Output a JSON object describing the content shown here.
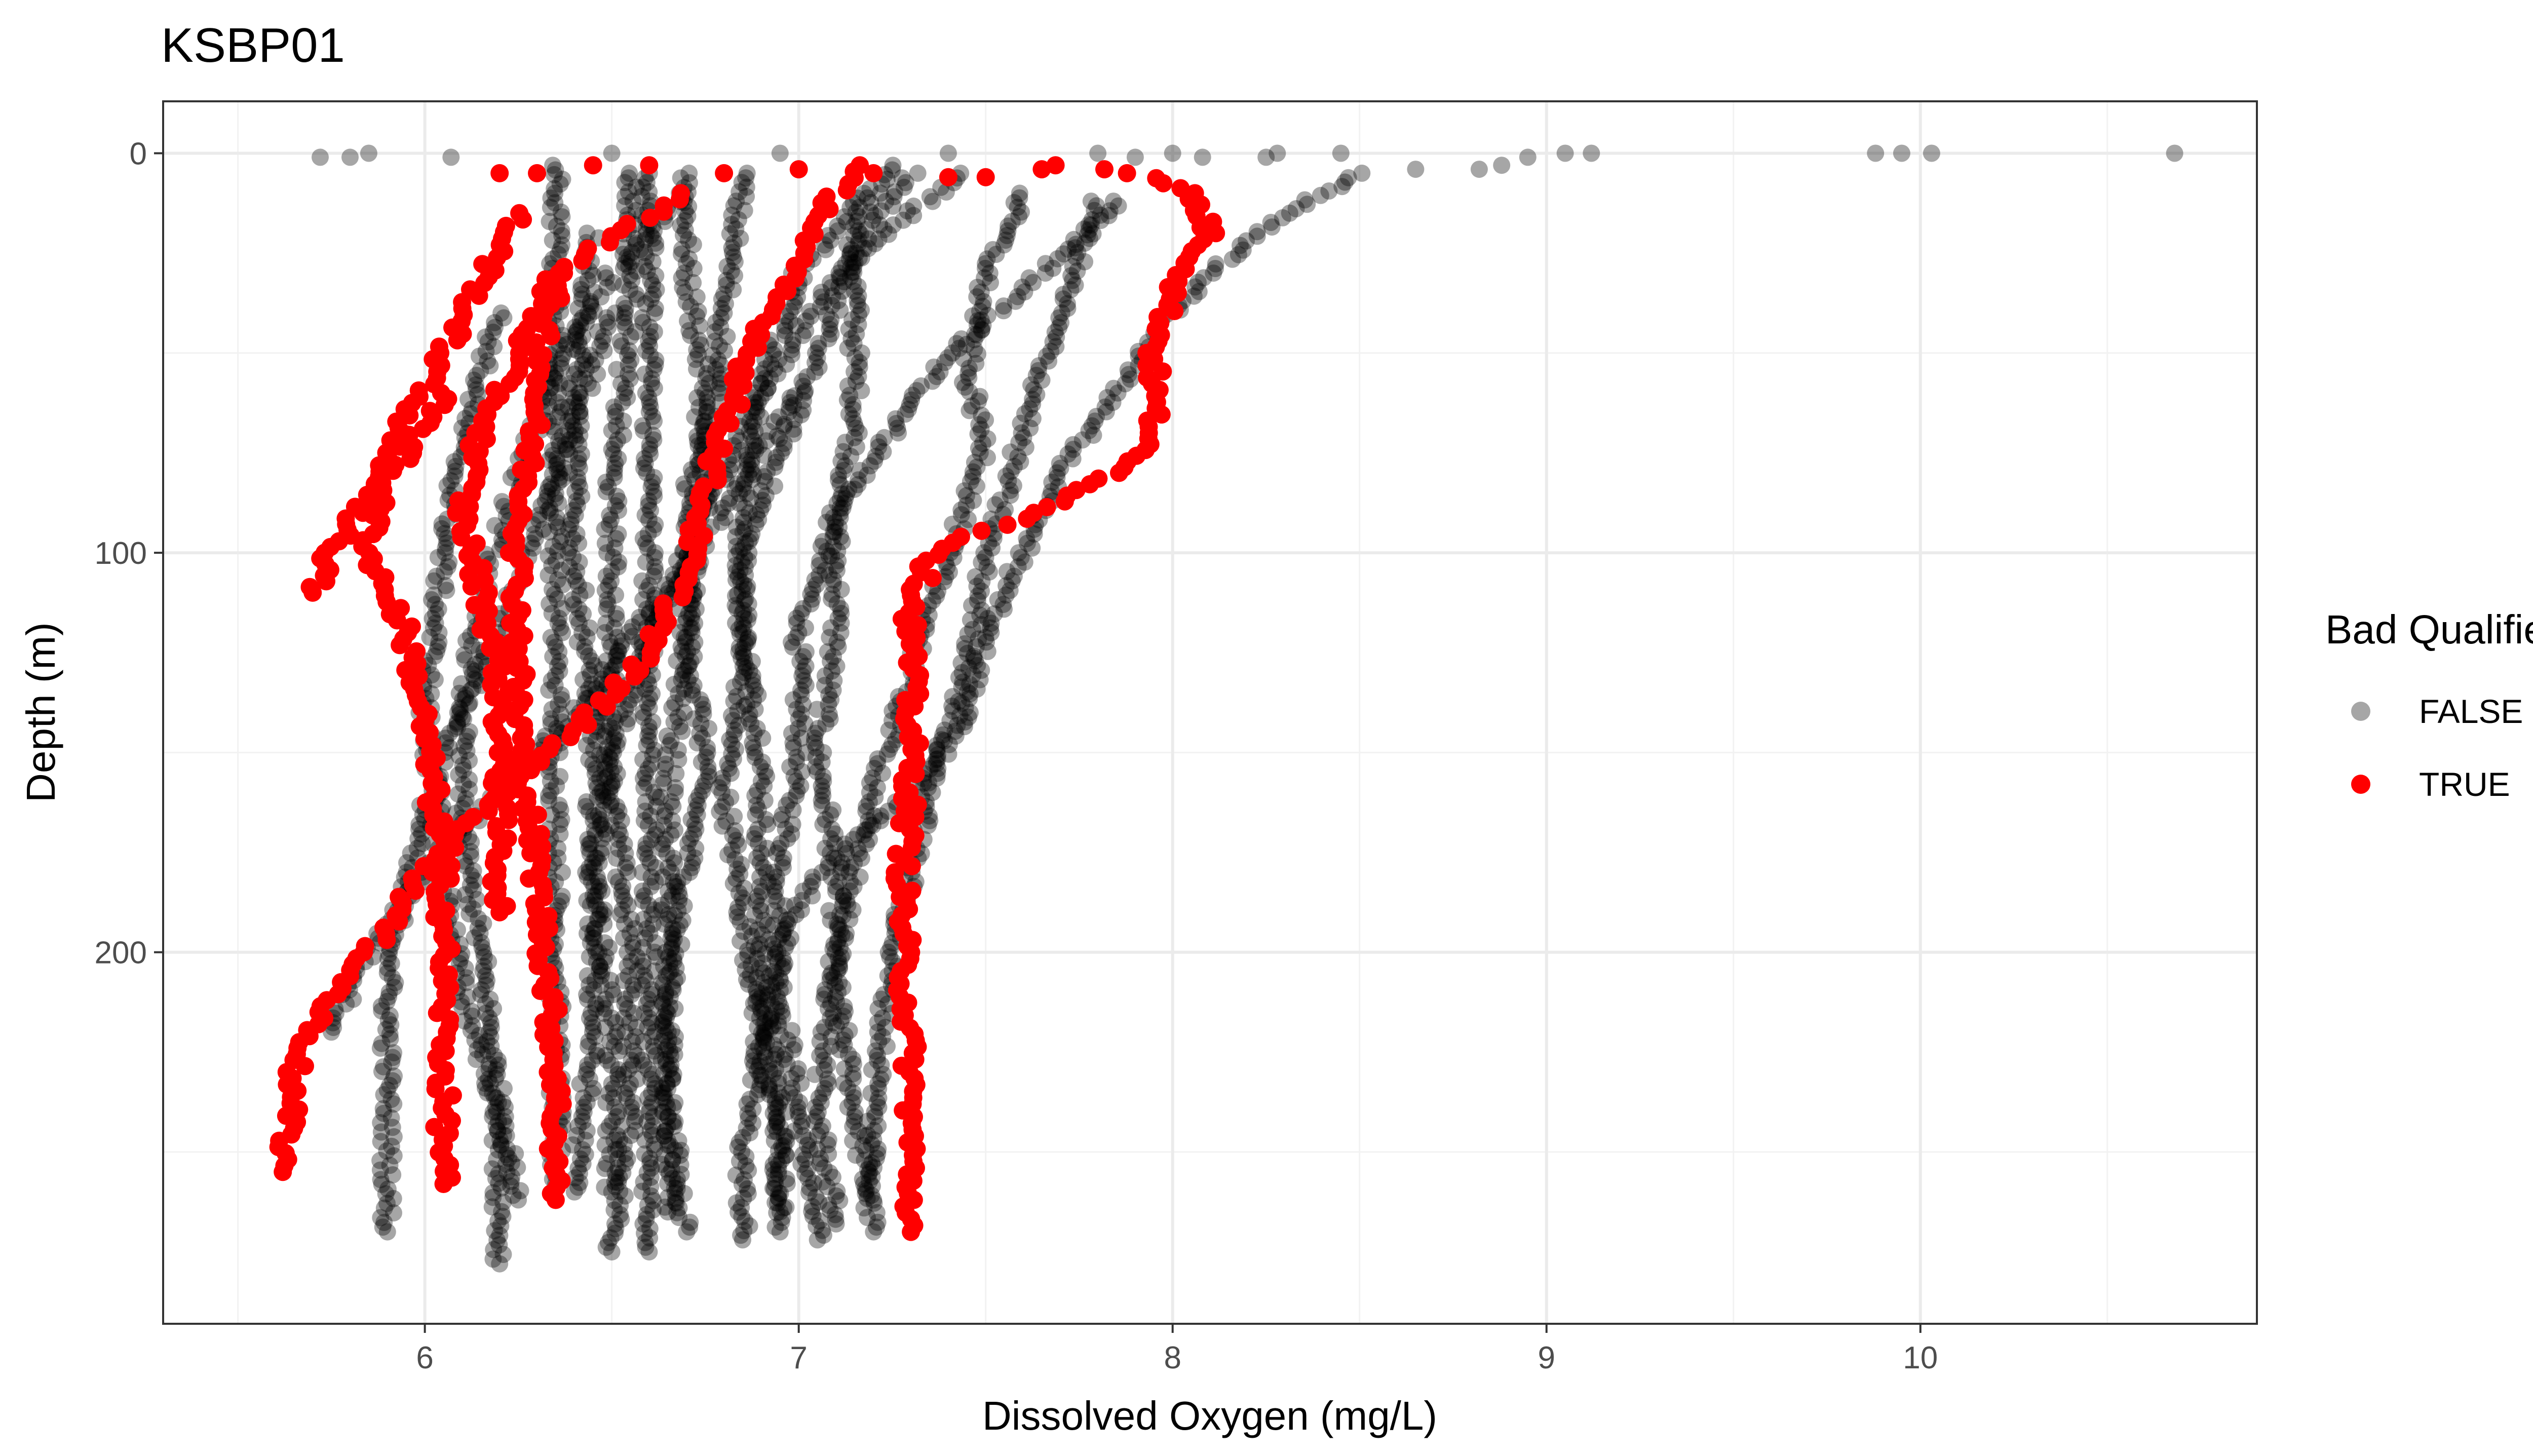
{
  "chart_data": {
    "type": "scatter",
    "title": "KSBP01",
    "xlabel": "Dissolved Oxygen (mg/L)",
    "ylabel": "Depth (m)",
    "xlim": [
      5.3,
      10.9
    ],
    "ylim": [
      -13,
      293
    ],
    "y_reversed": true,
    "x_ticks": [
      6,
      7,
      8,
      9,
      10
    ],
    "y_ticks": [
      0,
      100,
      200
    ],
    "grid": true,
    "legend": {
      "title": "Bad Qualifier",
      "position": "right",
      "entries": [
        {
          "label": "FALSE",
          "color": "#000000",
          "opacity": 0.35
        },
        {
          "label": "TRUE",
          "color": "#ff0000",
          "opacity": 1.0
        }
      ]
    },
    "series": [
      {
        "name": "FALSE",
        "color": "#000000",
        "opacity": 0.35,
        "profiles": [
          [
            [
              8.5,
              5
            ],
            [
              8.3,
              15
            ],
            [
              8.1,
              30
            ],
            [
              7.95,
              45
            ],
            [
              7.85,
              60
            ],
            [
              7.7,
              80
            ],
            [
              7.6,
              100
            ],
            [
              7.5,
              120
            ],
            [
              7.45,
              140
            ],
            [
              7.3,
              160
            ],
            [
              7.05,
              180
            ],
            [
              6.95,
              200
            ],
            [
              6.9,
              225
            ],
            [
              6.95,
              245
            ],
            [
              6.95,
              265
            ]
          ],
          [
            [
              7.85,
              12
            ],
            [
              7.65,
              30
            ],
            [
              7.4,
              50
            ],
            [
              7.25,
              70
            ],
            [
              7.1,
              90
            ],
            [
              7.0,
              120
            ],
            [
              7.0,
              150
            ],
            [
              6.95,
              180
            ],
            [
              6.95,
              210
            ],
            [
              7.0,
              240
            ],
            [
              7.05,
              272
            ]
          ],
          [
            [
              7.3,
              5
            ],
            [
              7.15,
              25
            ],
            [
              7.15,
              50
            ],
            [
              7.15,
              70
            ],
            [
              7.1,
              90
            ],
            [
              7.1,
              120
            ],
            [
              7.05,
              150
            ],
            [
              7.1,
              180
            ],
            [
              7.1,
              210
            ],
            [
              7.15,
              240
            ],
            [
              7.2,
              270
            ]
          ],
          [
            [
              7.25,
              3
            ],
            [
              7.0,
              30
            ],
            [
              6.9,
              60
            ],
            [
              6.85,
              90
            ],
            [
              6.85,
              120
            ],
            [
              6.9,
              150
            ],
            [
              6.9,
              180
            ],
            [
              6.9,
              210
            ],
            [
              6.95,
              240
            ],
            [
              6.95,
              270
            ]
          ],
          [
            [
              7.45,
              5
            ],
            [
              7.15,
              25
            ],
            [
              7.05,
              50
            ],
            [
              6.95,
              75
            ],
            [
              6.85,
              100
            ],
            [
              6.85,
              130
            ],
            [
              6.8,
              160
            ],
            [
              6.85,
              190
            ],
            [
              6.9,
              220
            ],
            [
              6.85,
              250
            ],
            [
              6.85,
              272
            ]
          ],
          [
            [
              6.35,
              3
            ],
            [
              6.35,
              30
            ],
            [
              6.35,
              60
            ],
            [
              6.35,
              90
            ],
            [
              6.35,
              120
            ],
            [
              6.35,
              150
            ],
            [
              6.35,
              180
            ],
            [
              6.35,
              210
            ],
            [
              6.35,
              240
            ],
            [
              6.35,
              258
            ]
          ],
          [
            [
              6.7,
              5
            ],
            [
              6.7,
              30
            ],
            [
              6.75,
              60
            ],
            [
              6.7,
              90
            ],
            [
              6.7,
              120
            ],
            [
              6.75,
              150
            ],
            [
              6.7,
              180
            ],
            [
              6.65,
              210
            ],
            [
              6.65,
              240
            ],
            [
              6.7,
              270
            ]
          ],
          [
            [
              6.55,
              5
            ],
            [
              6.55,
              40
            ],
            [
              6.5,
              80
            ],
            [
              6.5,
              120
            ],
            [
              6.5,
              160
            ],
            [
              6.55,
              200
            ],
            [
              6.55,
              240
            ],
            [
              6.5,
              275
            ]
          ],
          [
            [
              6.6,
              5
            ],
            [
              6.6,
              40
            ],
            [
              6.6,
              80
            ],
            [
              6.6,
              120
            ],
            [
              6.6,
              160
            ],
            [
              6.6,
              200
            ],
            [
              6.6,
              240
            ],
            [
              6.6,
              275
            ]
          ],
          [
            [
              6.45,
              20
            ],
            [
              6.4,
              60
            ],
            [
              6.4,
              100
            ],
            [
              6.45,
              140
            ],
            [
              6.45,
              180
            ],
            [
              6.5,
              220
            ],
            [
              6.5,
              260
            ]
          ],
          [
            [
              6.85,
              5
            ],
            [
              6.8,
              40
            ],
            [
              6.75,
              80
            ],
            [
              6.7,
              120
            ],
            [
              6.65,
              160
            ],
            [
              6.65,
              200
            ],
            [
              6.65,
              240
            ],
            [
              6.65,
              265
            ]
          ],
          [
            [
              7.2,
              10
            ],
            [
              7.1,
              30
            ],
            [
              6.9,
              60
            ],
            [
              6.75,
              90
            ],
            [
              6.6,
              120
            ],
            [
              6.5,
              150
            ],
            [
              6.45,
              180
            ],
            [
              6.45,
              220
            ],
            [
              6.4,
              260
            ]
          ],
          [
            [
              6.7,
              10
            ],
            [
              6.5,
              30
            ],
            [
              6.35,
              55
            ],
            [
              6.25,
              80
            ],
            [
              6.15,
              110
            ],
            [
              6.1,
              140
            ],
            [
              6.1,
              170
            ],
            [
              6.15,
              200
            ],
            [
              6.2,
              240
            ],
            [
              6.2,
              278
            ]
          ],
          [
            [
              6.5,
              40
            ],
            [
              6.35,
              80
            ],
            [
              6.2,
              120
            ],
            [
              6.05,
              150
            ],
            [
              5.95,
              180
            ],
            [
              5.9,
              210
            ],
            [
              5.9,
              245
            ],
            [
              5.9,
              270
            ]
          ],
          [
            [
              7.0,
              60
            ],
            [
              6.8,
              90
            ],
            [
              6.6,
              115
            ],
            [
              6.4,
              140
            ],
            [
              6.2,
              160
            ],
            [
              6.0,
              180
            ],
            [
              5.85,
              200
            ],
            [
              5.75,
              220
            ]
          ],
          [
            [
              6.2,
              40
            ],
            [
              6.1,
              70
            ],
            [
              6.05,
              100
            ],
            [
              6.0,
              140
            ],
            [
              6.05,
              180
            ],
            [
              6.1,
              210
            ],
            [
              6.2,
              240
            ],
            [
              6.25,
              262
            ]
          ],
          [
            [
              7.6,
              10
            ],
            [
              7.5,
              30
            ],
            [
              7.45,
              55
            ],
            [
              7.5,
              75
            ],
            [
              7.4,
              100
            ],
            [
              7.3,
              130
            ],
            [
              7.2,
              160
            ],
            [
              7.1,
              200
            ],
            [
              7.05,
              240
            ],
            [
              7.1,
              268
            ]
          ],
          [
            [
              7.8,
              12
            ],
            [
              7.7,
              40
            ],
            [
              7.6,
              70
            ],
            [
              7.5,
              100
            ],
            [
              7.45,
              130
            ],
            [
              7.35,
              160
            ],
            [
              7.25,
              200
            ],
            [
              7.2,
              240
            ],
            [
              7.2,
              262
            ]
          ]
        ],
        "surface_points": [
          [
            5.72,
            1
          ],
          [
            5.8,
            1
          ],
          [
            5.85,
            0
          ],
          [
            6.07,
            1
          ],
          [
            6.5,
            0
          ],
          [
            6.95,
            0
          ],
          [
            7.4,
            0
          ],
          [
            7.8,
            0
          ],
          [
            7.9,
            1
          ],
          [
            8.0,
            0
          ],
          [
            8.08,
            1
          ],
          [
            8.25,
            1
          ],
          [
            8.28,
            0
          ],
          [
            8.45,
            0
          ],
          [
            8.65,
            4
          ],
          [
            8.82,
            4
          ],
          [
            8.88,
            3
          ],
          [
            8.95,
            1
          ],
          [
            9.05,
            0
          ],
          [
            9.12,
            0
          ],
          [
            9.88,
            0
          ],
          [
            9.95,
            0
          ],
          [
            10.03,
            0
          ],
          [
            10.68,
            0
          ]
        ]
      },
      {
        "name": "TRUE",
        "color": "#ff0000",
        "opacity": 1.0,
        "profiles": [
          [
            [
              7.7,
              3
            ],
            [
              7.9,
              5
            ],
            [
              8.05,
              10
            ],
            [
              8.1,
              20
            ],
            [
              8.0,
              35
            ],
            [
              7.95,
              50
            ],
            [
              7.95,
              70
            ],
            [
              7.85,
              80
            ],
            [
              7.65,
              90
            ],
            [
              7.45,
              96
            ],
            [
              7.35,
              102
            ],
            [
              7.3,
              115
            ],
            [
              7.3,
              140
            ],
            [
              7.3,
              160
            ],
            [
              7.28,
              180
            ],
            [
              7.28,
              200
            ],
            [
              7.3,
              230
            ],
            [
              7.3,
              270
            ]
          ],
          [
            [
              7.15,
              3
            ],
            [
              7.0,
              25
            ],
            [
              6.85,
              55
            ],
            [
              6.75,
              85
            ],
            [
              6.7,
              105
            ],
            [
              6.6,
              125
            ],
            [
              6.45,
              140
            ],
            [
              6.2,
              160
            ],
            [
              6.0,
              180
            ],
            [
              5.85,
              200
            ],
            [
              5.72,
              215
            ],
            [
              5.65,
              230
            ],
            [
              5.62,
              255
            ]
          ],
          [
            [
              6.7,
              10
            ],
            [
              6.35,
              30
            ],
            [
              6.25,
              50
            ],
            [
              6.15,
              70
            ],
            [
              6.1,
              90
            ],
            [
              6.15,
              110
            ],
            [
              6.2,
              130
            ],
            [
              6.2,
              150
            ],
            [
              6.2,
              170
            ],
            [
              6.2,
              190
            ]
          ],
          [
            [
              6.35,
              30
            ],
            [
              6.3,
              60
            ],
            [
              6.25,
              100
            ],
            [
              6.25,
              140
            ],
            [
              6.3,
              180
            ],
            [
              6.35,
              230
            ],
            [
              6.35,
              262
            ]
          ],
          [
            [
              6.25,
              15
            ],
            [
              6.05,
              50
            ],
            [
              5.9,
              75
            ],
            [
              5.85,
              100
            ],
            [
              5.95,
              120
            ],
            [
              6.0,
              145
            ],
            [
              6.05,
              180
            ],
            [
              6.05,
              220
            ],
            [
              6.05,
              258
            ]
          ],
          [
            [
              6.05,
              60
            ],
            [
              5.95,
              75
            ],
            [
              5.82,
              90
            ],
            [
              5.75,
              100
            ],
            [
              5.7,
              110
            ]
          ]
        ],
        "surface_points": [
          [
            6.2,
            5
          ],
          [
            6.3,
            5
          ],
          [
            6.45,
            3
          ],
          [
            6.6,
            3
          ],
          [
            6.8,
            5
          ],
          [
            7.0,
            4
          ],
          [
            7.2,
            5
          ],
          [
            7.4,
            6
          ],
          [
            7.5,
            6
          ],
          [
            7.65,
            4
          ]
        ]
      }
    ]
  }
}
